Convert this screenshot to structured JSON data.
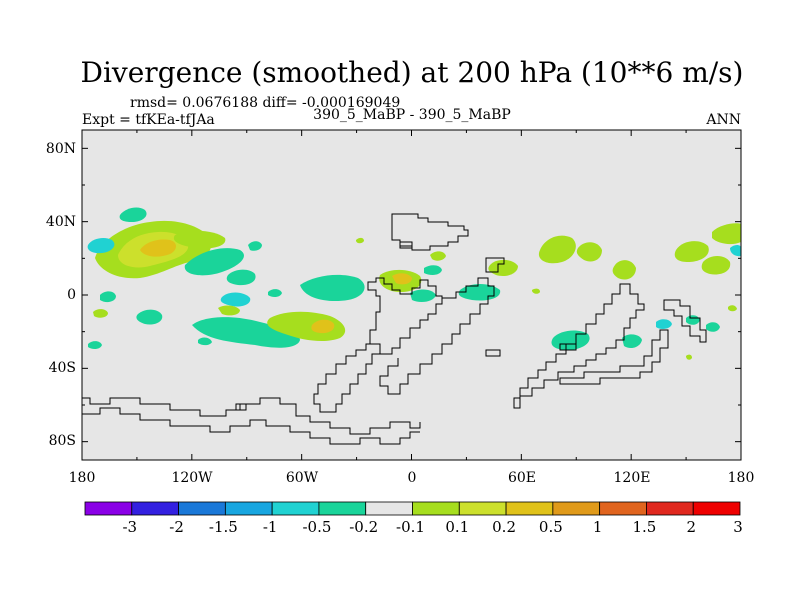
{
  "title": "Divergence (smoothed) at 200 hPa (10**6 m/s)",
  "stats": "rmsd= 0.0676188 diff= -0.000169049",
  "experiment": "Expt = tfKEa-tfJAa",
  "case_label": "390_5_MaBP - 390_5_MaBP",
  "period": "ANN",
  "colors": {
    "background_field": "#e6e6e6",
    "coastline": "#000000",
    "palette": [
      "#8a00e6",
      "#3320e0",
      "#1a78d8",
      "#18a6e0",
      "#20d2d2",
      "#1ad49a",
      "#e6e6e6",
      "#a6de1e",
      "#cce02c",
      "#e0c21a",
      "#e09a1a",
      "#e0641e",
      "#e0281e",
      "#ee0000"
    ]
  },
  "chart_data": {
    "type": "heatmap",
    "projection": "cylindrical equidistant",
    "x_ticks": [
      "180",
      "120W",
      "60W",
      "0",
      "60E",
      "120E",
      "180"
    ],
    "y_ticks": [
      "80N",
      "40N",
      "0",
      "40S",
      "80S"
    ],
    "xlim": [
      -180,
      180
    ],
    "ylim": [
      -90,
      90
    ],
    "colorbar_levels": [
      "-3",
      "-2",
      "-1.5",
      "-1",
      "-0.5",
      "-0.2",
      "-0.1",
      "0.1",
      "0.2",
      "0.5",
      "1",
      "1.5",
      "2",
      "3"
    ],
    "features": [
      {
        "lon": -140,
        "lat": 30,
        "value": 0.2
      },
      {
        "lon": -132,
        "lat": 28,
        "value": 0.5
      },
      {
        "lon": -165,
        "lat": 26,
        "value": -0.2
      },
      {
        "lon": -105,
        "lat": 28,
        "value": -0.2
      },
      {
        "lon": -90,
        "lat": 25,
        "value": -0.2
      },
      {
        "lon": -10,
        "lat": 8,
        "value": 0.2
      },
      {
        "lon": -8,
        "lat": 8,
        "value": 0.5
      },
      {
        "lon": 80,
        "lat": 22,
        "value": 0.2
      },
      {
        "lon": 152,
        "lat": 22,
        "value": 0.2
      },
      {
        "lon": 170,
        "lat": 30,
        "value": 0.2
      },
      {
        "lon": -140,
        "lat": -15,
        "value": -0.2
      },
      {
        "lon": -80,
        "lat": -28,
        "value": -0.2
      },
      {
        "lon": -96,
        "lat": -28,
        "value": 0.2
      },
      {
        "lon": -95,
        "lat": -28,
        "value": 0.5
      },
      {
        "lon": -45,
        "lat": 5,
        "value": -0.2
      },
      {
        "lon": 85,
        "lat": -22,
        "value": -0.2
      }
    ]
  }
}
